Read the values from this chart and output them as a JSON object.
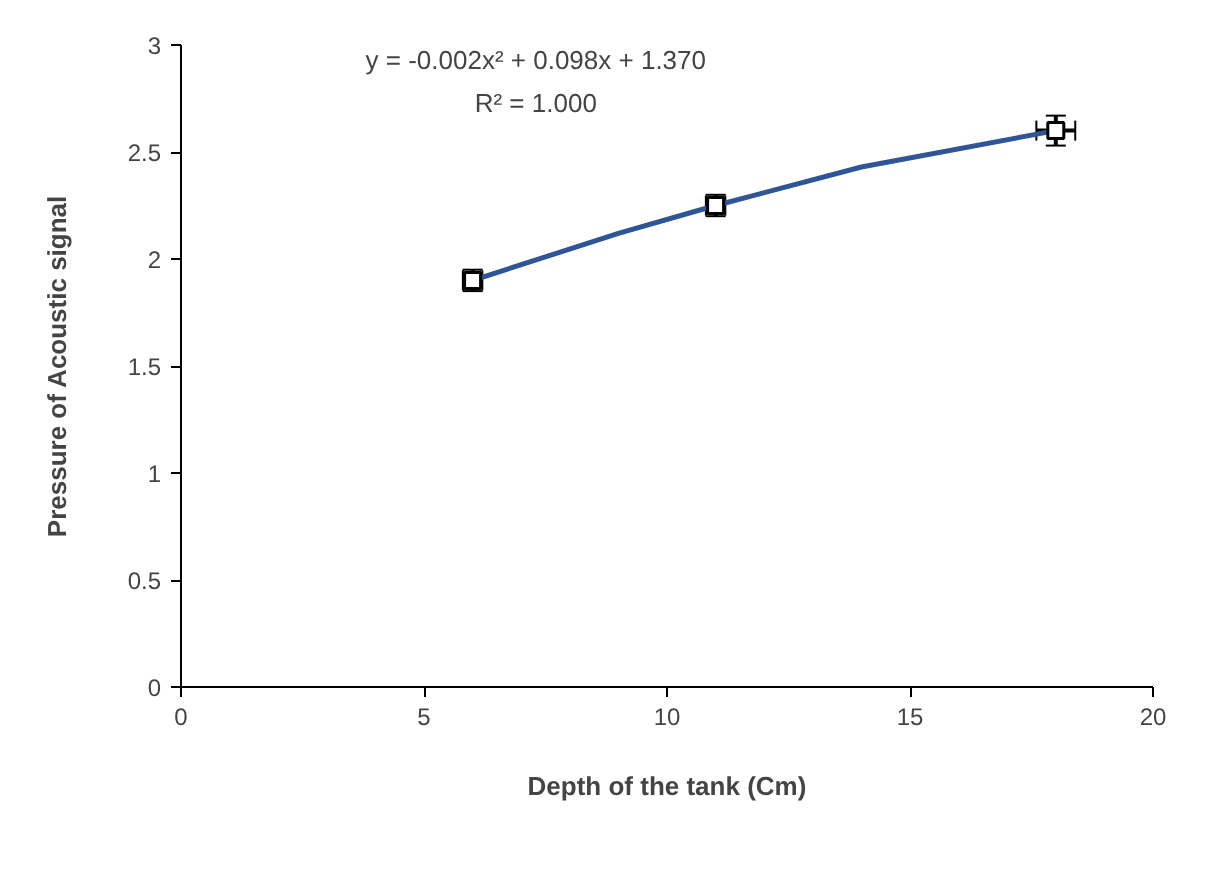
{
  "chart_data": {
    "type": "scatter",
    "xlabel": "Depth of the tank (Cm)",
    "ylabel": "Pressure of Acoustic signal",
    "xlim": [
      0,
      20
    ],
    "xticks": [
      0,
      5,
      10,
      15,
      20
    ],
    "ylim": [
      0,
      3
    ],
    "yticks": [
      0,
      0.5,
      1,
      1.5,
      2,
      2.5,
      3
    ],
    "series": [
      {
        "type": "line",
        "marker": "none",
        "color": "#2f5597",
        "x": [
          6,
          9,
          11,
          14,
          18
        ],
        "values": [
          1.9,
          2.12,
          2.25,
          2.43,
          2.6
        ]
      },
      {
        "marker": "square",
        "color": "#000000",
        "x": [
          6,
          11,
          18
        ],
        "values": [
          1.9,
          2.25,
          2.6
        ],
        "errors": [
          0.05,
          0.05,
          0.07
        ],
        "xerrors": [
          0.2,
          0.2,
          0.4
        ]
      }
    ],
    "annotations": [
      "y = -0.002x² + 0.098x + 1.370",
      "R² = 1.000"
    ]
  }
}
